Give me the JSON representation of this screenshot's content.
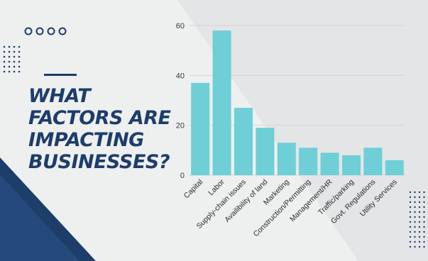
{
  "headline": {
    "line1": "WHAT",
    "line2": "FACTORS ARE",
    "line3": "IMPACTING",
    "line4": "BUSINESSES?"
  },
  "colors": {
    "navy": "#1d3d6b",
    "bar": "#6ecfd6",
    "background": "#eeefef"
  },
  "chart_data": {
    "type": "bar",
    "categories": [
      "Capital",
      "Labor",
      "Supply-chain issues",
      "Availibility of land",
      "Marketing",
      "Construction/Permitting",
      "Management/HR",
      "Traffic/parking",
      "Govt. Regulations",
      "Utility Services"
    ],
    "values": [
      37,
      58,
      27,
      19,
      13,
      11,
      9,
      8,
      11,
      6
    ],
    "title": "WHAT FACTORS ARE IMPACTING BUSINESSES?",
    "xlabel": "",
    "ylabel": "",
    "ylim": [
      0,
      60
    ],
    "yticks": [
      0,
      20,
      40,
      60
    ],
    "grid": true,
    "bar_color": "#6ecfd6"
  }
}
